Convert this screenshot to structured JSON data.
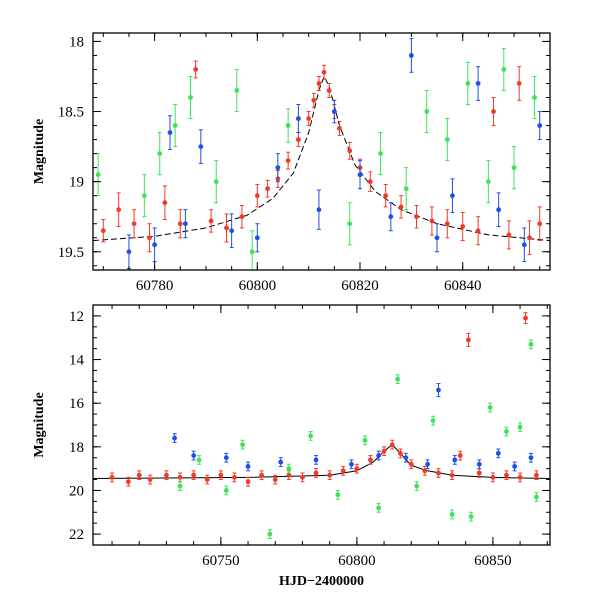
{
  "colors": {
    "blue": "#1f4fe6",
    "green": "#3ee35a",
    "red": "#f23a2a",
    "model": "#000000"
  },
  "chart_data": [
    {
      "type": "scatter",
      "description_panel": "zoom",
      "xlabel": "",
      "ylabel": "Magnitude",
      "xlim": [
        60768,
        60857
      ],
      "ylim": [
        19.63,
        17.94
      ],
      "y_inverted": true,
      "xticks": [
        60780,
        60800,
        60820,
        60840
      ],
      "xtick_labels": [
        "60780",
        "60800",
        "60820",
        "60840"
      ],
      "yticks": [
        18,
        18.5,
        19,
        19.5
      ],
      "ytick_labels": [
        "18",
        "18.5",
        "19",
        "19.5"
      ],
      "model_curve": {
        "x": [
          60768,
          60780,
          60790,
          60798,
          60803,
          60807,
          60810,
          60812,
          60813,
          60814,
          60816,
          60819,
          60823,
          60828,
          60835,
          60845,
          60857
        ],
        "y": [
          19.42,
          19.39,
          19.33,
          19.24,
          19.12,
          18.94,
          18.65,
          18.35,
          18.25,
          18.32,
          18.6,
          18.88,
          19.07,
          19.2,
          19.3,
          19.38,
          19.42
        ]
      },
      "series": [
        {
          "color_key": "red",
          "points": [
            {
              "x": 60770,
              "y": 19.35,
              "err": 0.08
            },
            {
              "x": 60773,
              "y": 19.2,
              "err": 0.12
            },
            {
              "x": 60776,
              "y": 19.3,
              "err": 0.1
            },
            {
              "x": 60779,
              "y": 19.4,
              "err": 0.1
            },
            {
              "x": 60782,
              "y": 19.15,
              "err": 0.12
            },
            {
              "x": 60785,
              "y": 19.3,
              "err": 0.1
            },
            {
              "x": 60788,
              "y": 18.2,
              "err": 0.06
            },
            {
              "x": 60791,
              "y": 19.28,
              "err": 0.08
            },
            {
              "x": 60794,
              "y": 19.33,
              "err": 0.1
            },
            {
              "x": 60797,
              "y": 19.25,
              "err": 0.08
            },
            {
              "x": 60800,
              "y": 19.1,
              "err": 0.08
            },
            {
              "x": 60802,
              "y": 19.05,
              "err": 0.06
            },
            {
              "x": 60804,
              "y": 18.98,
              "err": 0.06
            },
            {
              "x": 60806,
              "y": 18.85,
              "err": 0.06
            },
            {
              "x": 60808,
              "y": 18.7,
              "err": 0.05
            },
            {
              "x": 60810,
              "y": 18.55,
              "err": 0.05
            },
            {
              "x": 60811,
              "y": 18.42,
              "err": 0.05
            },
            {
              "x": 60812,
              "y": 18.3,
              "err": 0.05
            },
            {
              "x": 60813,
              "y": 18.22,
              "err": 0.05
            },
            {
              "x": 60814,
              "y": 18.35,
              "err": 0.05
            },
            {
              "x": 60815,
              "y": 18.5,
              "err": 0.05
            },
            {
              "x": 60816,
              "y": 18.62,
              "err": 0.05
            },
            {
              "x": 60818,
              "y": 18.78,
              "err": 0.06
            },
            {
              "x": 60820,
              "y": 18.9,
              "err": 0.06
            },
            {
              "x": 60822,
              "y": 19.0,
              "err": 0.07
            },
            {
              "x": 60825,
              "y": 19.1,
              "err": 0.08
            },
            {
              "x": 60828,
              "y": 19.18,
              "err": 0.08
            },
            {
              "x": 60831,
              "y": 19.25,
              "err": 0.08
            },
            {
              "x": 60834,
              "y": 19.28,
              "err": 0.1
            },
            {
              "x": 60837,
              "y": 19.3,
              "err": 0.1
            },
            {
              "x": 60840,
              "y": 19.32,
              "err": 0.1
            },
            {
              "x": 60843,
              "y": 19.35,
              "err": 0.1
            },
            {
              "x": 60846,
              "y": 18.5,
              "err": 0.1
            },
            {
              "x": 60849,
              "y": 19.38,
              "err": 0.1
            },
            {
              "x": 60851,
              "y": 18.3,
              "err": 0.12
            },
            {
              "x": 60853,
              "y": 19.4,
              "err": 0.12
            },
            {
              "x": 60855,
              "y": 19.3,
              "err": 0.12
            }
          ]
        },
        {
          "color_key": "blue",
          "points": [
            {
              "x": 60775,
              "y": 19.5,
              "err": 0.12
            },
            {
              "x": 60780,
              "y": 19.45,
              "err": 0.12
            },
            {
              "x": 60783,
              "y": 18.65,
              "err": 0.12
            },
            {
              "x": 60786,
              "y": 19.3,
              "err": 0.1
            },
            {
              "x": 60789,
              "y": 18.75,
              "err": 0.12
            },
            {
              "x": 60795,
              "y": 19.35,
              "err": 0.12
            },
            {
              "x": 60800,
              "y": 19.4,
              "err": 0.1
            },
            {
              "x": 60804,
              "y": 18.9,
              "err": 0.1
            },
            {
              "x": 60808,
              "y": 18.55,
              "err": 0.1
            },
            {
              "x": 60812,
              "y": 19.2,
              "err": 0.14
            },
            {
              "x": 60815,
              "y": 18.5,
              "err": 0.08
            },
            {
              "x": 60820,
              "y": 18.95,
              "err": 0.1
            },
            {
              "x": 60826,
              "y": 19.25,
              "err": 0.1
            },
            {
              "x": 60830,
              "y": 18.1,
              "err": 0.12
            },
            {
              "x": 60835,
              "y": 19.4,
              "err": 0.1
            },
            {
              "x": 60838,
              "y": 19.1,
              "err": 0.12
            },
            {
              "x": 60843,
              "y": 18.3,
              "err": 0.12
            },
            {
              "x": 60847,
              "y": 19.2,
              "err": 0.12
            },
            {
              "x": 60852,
              "y": 19.45,
              "err": 0.12
            },
            {
              "x": 60855,
              "y": 18.6,
              "err": 0.1
            }
          ]
        },
        {
          "color_key": "green",
          "points": [
            {
              "x": 60769,
              "y": 18.95,
              "err": 0.15
            },
            {
              "x": 60778,
              "y": 19.1,
              "err": 0.15
            },
            {
              "x": 60781,
              "y": 18.8,
              "err": 0.15
            },
            {
              "x": 60784,
              "y": 18.6,
              "err": 0.15
            },
            {
              "x": 60787,
              "y": 18.4,
              "err": 0.15
            },
            {
              "x": 60792,
              "y": 19.0,
              "err": 0.15
            },
            {
              "x": 60796,
              "y": 18.35,
              "err": 0.15
            },
            {
              "x": 60799,
              "y": 19.5,
              "err": 0.15
            },
            {
              "x": 60806,
              "y": 18.6,
              "err": 0.12
            },
            {
              "x": 60818,
              "y": 19.3,
              "err": 0.15
            },
            {
              "x": 60824,
              "y": 18.8,
              "err": 0.15
            },
            {
              "x": 60829,
              "y": 19.05,
              "err": 0.15
            },
            {
              "x": 60833,
              "y": 18.5,
              "err": 0.15
            },
            {
              "x": 60837,
              "y": 18.7,
              "err": 0.15
            },
            {
              "x": 60841,
              "y": 18.3,
              "err": 0.15
            },
            {
              "x": 60845,
              "y": 19.0,
              "err": 0.15
            },
            {
              "x": 60848,
              "y": 18.2,
              "err": 0.15
            },
            {
              "x": 60850,
              "y": 18.9,
              "err": 0.15
            },
            {
              "x": 60854,
              "y": 18.4,
              "err": 0.15
            }
          ]
        }
      ]
    },
    {
      "type": "scatter",
      "description_panel": "full",
      "xlabel": "HJD−2400000",
      "ylabel": "Magnitude",
      "xlim": [
        60703,
        60871
      ],
      "ylim": [
        22.5,
        11.5
      ],
      "y_inverted": true,
      "xticks": [
        60750,
        60800,
        60850
      ],
      "xtick_labels": [
        "60750",
        "60800",
        "60850"
      ],
      "yticks": [
        12,
        14,
        16,
        18,
        20,
        22
      ],
      "ytick_labels": [
        "12",
        "14",
        "16",
        "18",
        "20",
        "22"
      ],
      "model_curve": {
        "x": [
          60703,
          60730,
          60760,
          60790,
          60800,
          60806,
          60810,
          60813,
          60816,
          60820,
          60826,
          60835,
          60850,
          60871
        ],
        "y": [
          19.45,
          19.43,
          19.4,
          19.3,
          19.1,
          18.7,
          18.2,
          17.9,
          18.3,
          18.85,
          19.1,
          19.3,
          19.4,
          19.45
        ]
      },
      "series": [
        {
          "color_key": "red",
          "points": [
            {
              "x": 60710,
              "y": 19.4,
              "err": 0.2
            },
            {
              "x": 60716,
              "y": 19.6,
              "err": 0.2
            },
            {
              "x": 60720,
              "y": 19.3,
              "err": 0.2
            },
            {
              "x": 60724,
              "y": 19.5,
              "err": 0.2
            },
            {
              "x": 60730,
              "y": 19.3,
              "err": 0.2
            },
            {
              "x": 60735,
              "y": 19.4,
              "err": 0.2
            },
            {
              "x": 60740,
              "y": 19.3,
              "err": 0.2
            },
            {
              "x": 60745,
              "y": 19.5,
              "err": 0.2
            },
            {
              "x": 60750,
              "y": 19.3,
              "err": 0.2
            },
            {
              "x": 60755,
              "y": 19.4,
              "err": 0.2
            },
            {
              "x": 60760,
              "y": 19.6,
              "err": 0.2
            },
            {
              "x": 60765,
              "y": 19.3,
              "err": 0.2
            },
            {
              "x": 60770,
              "y": 19.5,
              "err": 0.2
            },
            {
              "x": 60775,
              "y": 19.3,
              "err": 0.2
            },
            {
              "x": 60780,
              "y": 19.4,
              "err": 0.2
            },
            {
              "x": 60785,
              "y": 19.2,
              "err": 0.2
            },
            {
              "x": 60790,
              "y": 19.3,
              "err": 0.2
            },
            {
              "x": 60795,
              "y": 19.1,
              "err": 0.2
            },
            {
              "x": 60800,
              "y": 19.0,
              "err": 0.2
            },
            {
              "x": 60805,
              "y": 18.6,
              "err": 0.2
            },
            {
              "x": 60810,
              "y": 18.2,
              "err": 0.2
            },
            {
              "x": 60813,
              "y": 17.9,
              "err": 0.2
            },
            {
              "x": 60816,
              "y": 18.3,
              "err": 0.2
            },
            {
              "x": 60820,
              "y": 18.8,
              "err": 0.2
            },
            {
              "x": 60825,
              "y": 19.1,
              "err": 0.2
            },
            {
              "x": 60830,
              "y": 19.2,
              "err": 0.2
            },
            {
              "x": 60835,
              "y": 19.3,
              "err": 0.2
            },
            {
              "x": 60838,
              "y": 18.4,
              "err": 0.2
            },
            {
              "x": 60841,
              "y": 13.1,
              "err": 0.3
            },
            {
              "x": 60845,
              "y": 19.2,
              "err": 0.2
            },
            {
              "x": 60850,
              "y": 19.4,
              "err": 0.2
            },
            {
              "x": 60855,
              "y": 19.3,
              "err": 0.2
            },
            {
              "x": 60860,
              "y": 19.4,
              "err": 0.2
            },
            {
              "x": 60862,
              "y": 12.1,
              "err": 0.25
            },
            {
              "x": 60866,
              "y": 19.3,
              "err": 0.2
            }
          ]
        },
        {
          "color_key": "blue",
          "points": [
            {
              "x": 60733,
              "y": 17.6,
              "err": 0.2
            },
            {
              "x": 60740,
              "y": 18.4,
              "err": 0.2
            },
            {
              "x": 60752,
              "y": 18.5,
              "err": 0.2
            },
            {
              "x": 60760,
              "y": 18.9,
              "err": 0.2
            },
            {
              "x": 60772,
              "y": 18.7,
              "err": 0.2
            },
            {
              "x": 60785,
              "y": 18.6,
              "err": 0.2
            },
            {
              "x": 60798,
              "y": 18.8,
              "err": 0.2
            },
            {
              "x": 60808,
              "y": 18.4,
              "err": 0.2
            },
            {
              "x": 60818,
              "y": 18.5,
              "err": 0.2
            },
            {
              "x": 60826,
              "y": 18.8,
              "err": 0.2
            },
            {
              "x": 60830,
              "y": 15.4,
              "err": 0.3
            },
            {
              "x": 60836,
              "y": 18.6,
              "err": 0.2
            },
            {
              "x": 60845,
              "y": 18.8,
              "err": 0.2
            },
            {
              "x": 60852,
              "y": 18.3,
              "err": 0.2
            },
            {
              "x": 60858,
              "y": 18.9,
              "err": 0.2
            },
            {
              "x": 60864,
              "y": 18.5,
              "err": 0.2
            }
          ]
        },
        {
          "color_key": "green",
          "points": [
            {
              "x": 60735,
              "y": 19.8,
              "err": 0.2
            },
            {
              "x": 60742,
              "y": 18.6,
              "err": 0.2
            },
            {
              "x": 60752,
              "y": 20.0,
              "err": 0.2
            },
            {
              "x": 60758,
              "y": 17.9,
              "err": 0.2
            },
            {
              "x": 60768,
              "y": 22.0,
              "err": 0.2
            },
            {
              "x": 60775,
              "y": 19.0,
              "err": 0.2
            },
            {
              "x": 60783,
              "y": 17.5,
              "err": 0.2
            },
            {
              "x": 60793,
              "y": 20.2,
              "err": 0.2
            },
            {
              "x": 60803,
              "y": 17.7,
              "err": 0.2
            },
            {
              "x": 60808,
              "y": 20.8,
              "err": 0.2
            },
            {
              "x": 60815,
              "y": 14.9,
              "err": 0.2
            },
            {
              "x": 60822,
              "y": 19.8,
              "err": 0.2
            },
            {
              "x": 60828,
              "y": 16.8,
              "err": 0.2
            },
            {
              "x": 60835,
              "y": 21.1,
              "err": 0.2
            },
            {
              "x": 60842,
              "y": 21.2,
              "err": 0.2
            },
            {
              "x": 60849,
              "y": 16.2,
              "err": 0.2
            },
            {
              "x": 60855,
              "y": 17.3,
              "err": 0.2
            },
            {
              "x": 60860,
              "y": 17.1,
              "err": 0.2
            },
            {
              "x": 60864,
              "y": 13.3,
              "err": 0.2
            },
            {
              "x": 60866,
              "y": 20.3,
              "err": 0.2
            }
          ]
        }
      ]
    }
  ]
}
